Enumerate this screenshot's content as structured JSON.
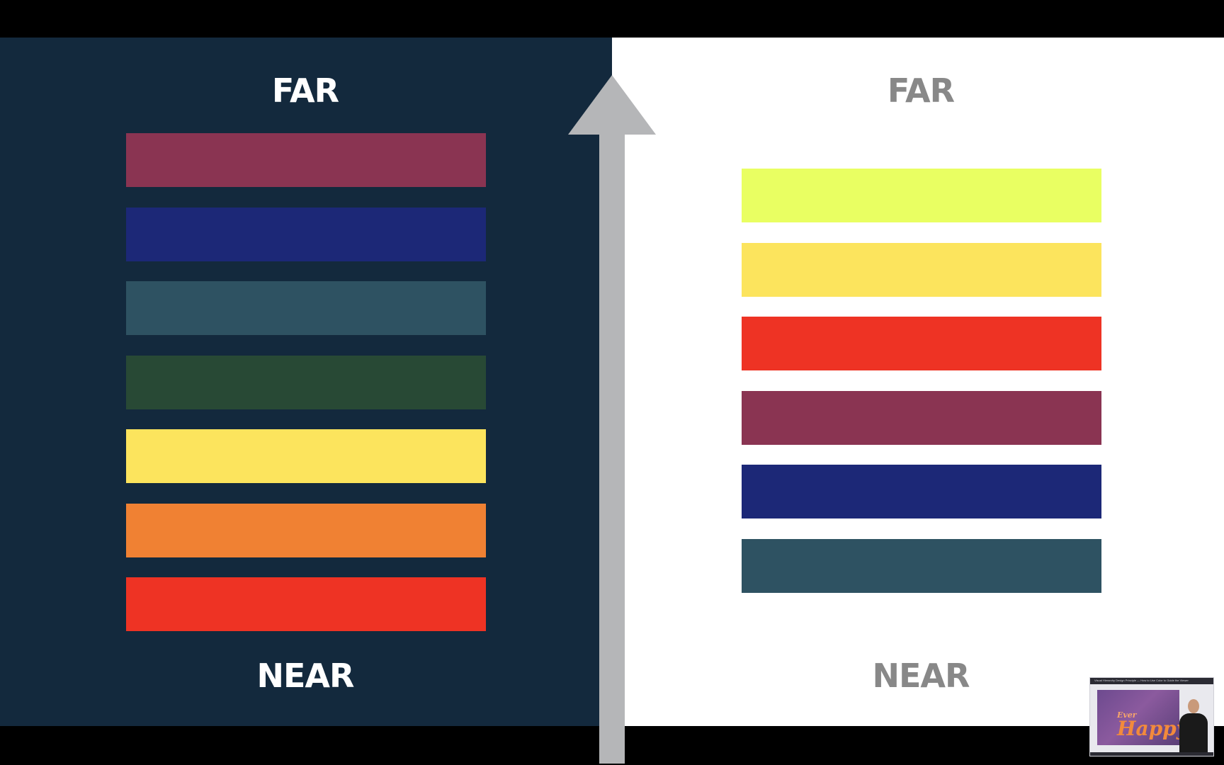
{
  "diagram": {
    "left_panel": {
      "top_label": "FAR",
      "bottom_label": "NEAR",
      "background": "#13293d",
      "bars": [
        {
          "color": "#8a3452"
        },
        {
          "color": "#1c2877"
        },
        {
          "color": "#2e5262"
        },
        {
          "color": "#284935"
        },
        {
          "color": "#fce45d"
        },
        {
          "color": "#f08133"
        },
        {
          "color": "#ee3324"
        }
      ]
    },
    "right_panel": {
      "top_label": "FAR",
      "bottom_label": "NEAR",
      "background": "#ffffff",
      "bars": [
        {
          "color": "#e9ff62"
        },
        {
          "color": "#fce45d"
        },
        {
          "color": "#ee3324"
        },
        {
          "color": "#8a3452"
        },
        {
          "color": "#1c2877"
        },
        {
          "color": "#2e5262"
        }
      ]
    },
    "arrow": {
      "color": "#b5b6b8",
      "direction": "up"
    }
  },
  "video_thumbnail": {
    "title": "Visual Hierarchy Design Principle — How to Use Color to Guide the Viewer",
    "word": "Happy?",
    "prefix": "Ever"
  }
}
